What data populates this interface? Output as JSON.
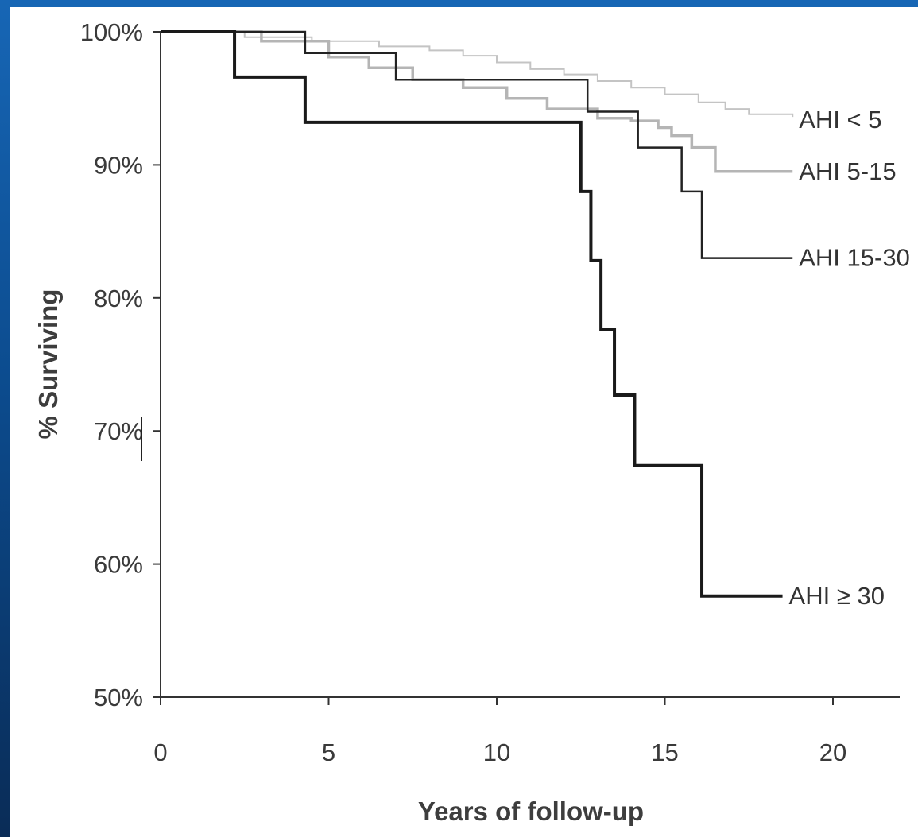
{
  "chart_data": {
    "type": "line",
    "step": true,
    "title": "",
    "xlabel": "Years of follow-up",
    "ylabel": "% Surviving",
    "xlim": [
      0,
      22
    ],
    "ylim": [
      50,
      100
    ],
    "x_ticks": [
      0,
      5,
      10,
      15,
      20
    ],
    "x_tick_labels": [
      "0",
      "5",
      "10",
      "15",
      "20"
    ],
    "y_ticks": [
      50,
      60,
      70,
      80,
      90,
      100
    ],
    "y_tick_labels": [
      "50%",
      "60%",
      "70%",
      "80%",
      "90%",
      "100%"
    ],
    "legend": "inline labels at right end of each curve",
    "grid": false,
    "series": [
      {
        "name": "AHI < 5",
        "color": "#c4c4c4",
        "line_width": 2,
        "points": [
          [
            0,
            100
          ],
          [
            2.5,
            99.6
          ],
          [
            4.5,
            99.3
          ],
          [
            6.5,
            98.9
          ],
          [
            8,
            98.6
          ],
          [
            9,
            98.2
          ],
          [
            10,
            97.7
          ],
          [
            11,
            97.2
          ],
          [
            12,
            96.8
          ],
          [
            13,
            96.3
          ],
          [
            14,
            95.8
          ],
          [
            15,
            95.3
          ],
          [
            16,
            94.7
          ],
          [
            16.8,
            94.2
          ],
          [
            17.5,
            93.8
          ],
          [
            18.8,
            93.6
          ]
        ]
      },
      {
        "name": "AHI 5-15",
        "color": "#b5b5b5",
        "line_width": 3.5,
        "points": [
          [
            0,
            100
          ],
          [
            3,
            99.3
          ],
          [
            5,
            98.1
          ],
          [
            6.2,
            97.3
          ],
          [
            7.5,
            96.4
          ],
          [
            9,
            95.8
          ],
          [
            10.3,
            95
          ],
          [
            11.5,
            94.2
          ],
          [
            13,
            93.5
          ],
          [
            14,
            93.3
          ],
          [
            14.8,
            92.8
          ],
          [
            15.2,
            92.2
          ],
          [
            15.8,
            91.3
          ],
          [
            16.5,
            89.5
          ],
          [
            18.8,
            89.5
          ]
        ]
      },
      {
        "name": "AHI 15-30",
        "color": "#222222",
        "line_width": 2.5,
        "points": [
          [
            0,
            100
          ],
          [
            4.3,
            98.4
          ],
          [
            7,
            96.4
          ],
          [
            12.7,
            94
          ],
          [
            14.2,
            91.3
          ],
          [
            15.5,
            88
          ],
          [
            16.1,
            83
          ],
          [
            18.8,
            83
          ]
        ]
      },
      {
        "name": "AHI ≥ 30",
        "color": "#1a1a1a",
        "line_width": 4,
        "points": [
          [
            0,
            100
          ],
          [
            2.2,
            96.6
          ],
          [
            4.3,
            93.2
          ],
          [
            12.5,
            88
          ],
          [
            12.8,
            82.8
          ],
          [
            13.1,
            77.6
          ],
          [
            13.5,
            72.7
          ],
          [
            14.1,
            67.4
          ],
          [
            16.1,
            57.6
          ],
          [
            18.5,
            57.6
          ]
        ]
      }
    ]
  }
}
